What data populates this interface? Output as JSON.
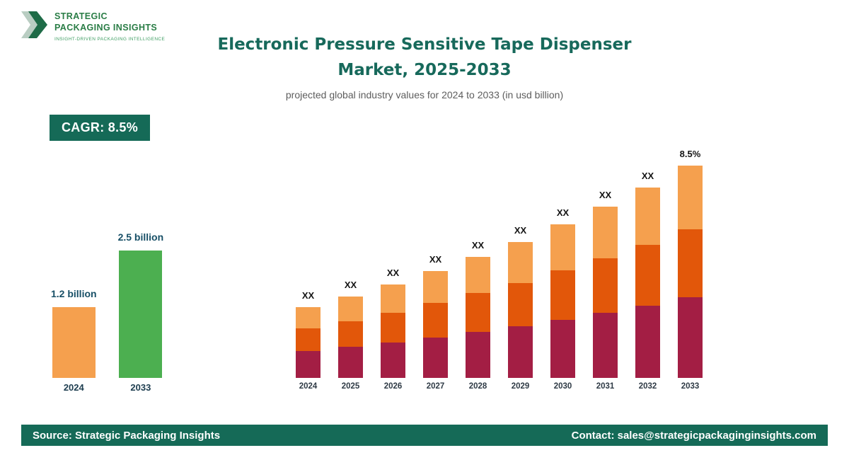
{
  "logo": {
    "name_line1": "STRATEGIC",
    "name_line2": "PACKAGING INSIGHTS",
    "tagline": "INSIGHT-DRIVEN PACKAGING INTELLIGENCE"
  },
  "header": {
    "title_line1": "Electronic Pressure Sensitive Tape Dispenser",
    "title_line2": "Market, 2025-2033",
    "subtitle": "projected global industry values for 2024 to 2033 (in usd billion)"
  },
  "cagr_badge": {
    "label": "CAGR: 8.5%"
  },
  "colors": {
    "brand_teal": "#156a57",
    "title_teal": "#17695b",
    "bar_orange_light": "#f5a04e",
    "bar_orange_dark": "#e2570a",
    "bar_maroon": "#a31e44",
    "bar_green": "#4caf50"
  },
  "chart_data": [
    {
      "type": "bar",
      "title": "Market size 2024 vs 2033",
      "unit": "usd billion",
      "categories": [
        "2024",
        "2033"
      ],
      "values": [
        1.2,
        2.5
      ],
      "value_labels": [
        "1.2 billion",
        "2.5 billion"
      ],
      "bar_colors": [
        "#f5a04e",
        "#4caf50"
      ],
      "grid": false,
      "legend": false
    },
    {
      "type": "bar",
      "stacked": true,
      "title": "Electronic Pressure Sensitive Tape Dispenser Market, 2024-2033",
      "unit": "usd billion",
      "categories": [
        "2024",
        "2025",
        "2026",
        "2027",
        "2028",
        "2029",
        "2030",
        "2031",
        "2032",
        "2033"
      ],
      "values_usd_billion_estimated": [
        1.2,
        1.3,
        1.41,
        1.53,
        1.66,
        1.8,
        1.96,
        2.12,
        2.3,
        2.5
      ],
      "bar_value_labels": [
        "XX",
        "XX",
        "XX",
        "XX",
        "XX",
        "XX",
        "XX",
        "XX",
        "XX",
        "8.5%"
      ],
      "cagr": "8.5%",
      "segment_fractions_bottom_to_top": [
        0.38,
        0.32,
        0.3
      ],
      "segment_colors_bottom_to_top": [
        "#a31e44",
        "#e2570a",
        "#f5a04e"
      ],
      "ylim": [
        0,
        2.5
      ],
      "grid": false,
      "legend": false
    }
  ],
  "footer": {
    "source": "Source: Strategic Packaging Insights",
    "contact": "Contact: sales@strategicpackaginginsights.com"
  }
}
